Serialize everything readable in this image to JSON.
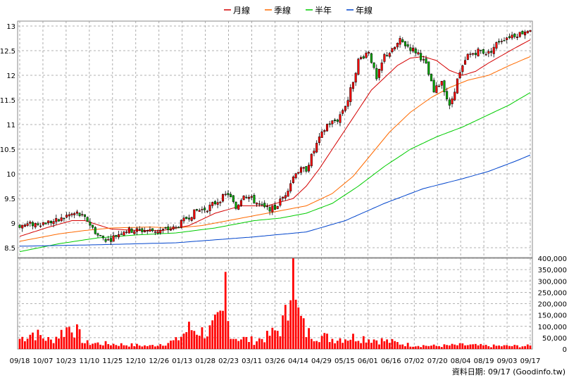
{
  "chart_data": [
    {
      "type": "candlestick",
      "legend": [
        {
          "name": "月線",
          "color": "#d40000"
        },
        {
          "name": "季線",
          "color": "#ff6a00"
        },
        {
          "name": "半年",
          "color": "#00cc00"
        },
        {
          "name": "年線",
          "color": "#0044cc"
        }
      ],
      "legend_position": "top-center",
      "grid": true,
      "ylim": [
        8.3,
        13.1
      ],
      "y_ticks": [
        "13",
        "12.5",
        "12",
        "11.5",
        "11",
        "10.5",
        "10",
        "9.5",
        "9",
        "8.5"
      ],
      "x_ticks": [
        "09/18",
        "10/07",
        "10/23",
        "11/10",
        "11/25",
        "12/10",
        "12/26",
        "01/13",
        "01/28",
        "02/23",
        "03/11",
        "03/26",
        "04/14",
        "04/29",
        "05/15",
        "06/01",
        "06/16",
        "07/02",
        "07/20",
        "08/04",
        "08/19",
        "09/03",
        "09/17"
      ],
      "price_keypoints": [
        [
          0,
          8.95
        ],
        [
          8,
          9.0
        ],
        [
          15,
          9.05
        ],
        [
          18,
          9.15
        ],
        [
          22,
          9.2
        ],
        [
          26,
          9.05
        ],
        [
          30,
          8.75
        ],
        [
          34,
          8.65
        ],
        [
          40,
          8.85
        ],
        [
          48,
          8.85
        ],
        [
          54,
          8.85
        ],
        [
          60,
          8.9
        ],
        [
          64,
          9.1
        ],
        [
          68,
          9.25
        ],
        [
          72,
          9.3
        ],
        [
          76,
          9.45
        ],
        [
          80,
          9.6
        ],
        [
          83,
          9.3
        ],
        [
          86,
          9.6
        ],
        [
          90,
          9.45
        ],
        [
          94,
          9.3
        ],
        [
          98,
          9.3
        ],
        [
          102,
          9.6
        ],
        [
          106,
          10.05
        ],
        [
          110,
          10.1
        ],
        [
          114,
          10.6
        ],
        [
          118,
          11.0
        ],
        [
          122,
          11.1
        ],
        [
          126,
          11.5
        ],
        [
          130,
          12.3
        ],
        [
          134,
          12.5
        ],
        [
          137,
          11.9
        ],
        [
          140,
          12.4
        ],
        [
          143,
          12.5
        ],
        [
          146,
          12.7
        ],
        [
          150,
          12.55
        ],
        [
          153,
          12.45
        ],
        [
          156,
          12.2
        ],
        [
          159,
          11.65
        ],
        [
          162,
          11.9
        ],
        [
          165,
          11.35
        ],
        [
          168,
          11.9
        ],
        [
          172,
          12.4
        ],
        [
          176,
          12.5
        ],
        [
          180,
          12.45
        ],
        [
          184,
          12.7
        ],
        [
          188,
          12.8
        ],
        [
          192,
          12.85
        ],
        [
          196,
          12.95
        ]
      ],
      "moving_averages": {
        "月線": [
          [
            0,
            8.73
          ],
          [
            10,
            8.9
          ],
          [
            20,
            9.05
          ],
          [
            25,
            9.05
          ],
          [
            35,
            8.88
          ],
          [
            45,
            8.85
          ],
          [
            55,
            8.85
          ],
          [
            65,
            8.95
          ],
          [
            75,
            9.2
          ],
          [
            85,
            9.35
          ],
          [
            95,
            9.35
          ],
          [
            105,
            9.5
          ],
          [
            110,
            9.75
          ],
          [
            115,
            10.1
          ],
          [
            120,
            10.5
          ],
          [
            125,
            10.9
          ],
          [
            130,
            11.3
          ],
          [
            135,
            11.7
          ],
          [
            140,
            11.95
          ],
          [
            145,
            12.2
          ],
          [
            150,
            12.35
          ],
          [
            155,
            12.38
          ],
          [
            160,
            12.3
          ],
          [
            165,
            12.1
          ],
          [
            170,
            12.0
          ],
          [
            175,
            12.08
          ],
          [
            180,
            12.25
          ],
          [
            185,
            12.4
          ],
          [
            190,
            12.55
          ],
          [
            196,
            12.72
          ]
        ],
        "季線": [
          [
            0,
            8.63
          ],
          [
            15,
            8.78
          ],
          [
            25,
            8.85
          ],
          [
            35,
            8.9
          ],
          [
            50,
            8.92
          ],
          [
            60,
            8.9
          ],
          [
            70,
            8.95
          ],
          [
            85,
            9.1
          ],
          [
            100,
            9.25
          ],
          [
            110,
            9.35
          ],
          [
            120,
            9.6
          ],
          [
            128,
            9.95
          ],
          [
            135,
            10.4
          ],
          [
            142,
            10.85
          ],
          [
            150,
            11.25
          ],
          [
            158,
            11.55
          ],
          [
            165,
            11.75
          ],
          [
            172,
            11.9
          ],
          [
            180,
            12.0
          ],
          [
            188,
            12.2
          ],
          [
            196,
            12.38
          ]
        ],
        "半年": [
          [
            0,
            8.42
          ],
          [
            15,
            8.58
          ],
          [
            30,
            8.7
          ],
          [
            45,
            8.76
          ],
          [
            60,
            8.8
          ],
          [
            75,
            8.9
          ],
          [
            90,
            9.05
          ],
          [
            100,
            9.1
          ],
          [
            110,
            9.2
          ],
          [
            120,
            9.4
          ],
          [
            130,
            9.75
          ],
          [
            140,
            10.15
          ],
          [
            150,
            10.5
          ],
          [
            160,
            10.75
          ],
          [
            170,
            10.95
          ],
          [
            180,
            11.2
          ],
          [
            188,
            11.4
          ],
          [
            196,
            11.65
          ]
        ],
        "年線": [
          [
            0,
            8.53
          ],
          [
            30,
            8.56
          ],
          [
            60,
            8.6
          ],
          [
            90,
            8.72
          ],
          [
            110,
            8.82
          ],
          [
            125,
            9.05
          ],
          [
            140,
            9.4
          ],
          [
            155,
            9.7
          ],
          [
            170,
            9.9
          ],
          [
            180,
            10.05
          ],
          [
            190,
            10.25
          ],
          [
            196,
            10.38
          ]
        ]
      }
    },
    {
      "type": "bar",
      "series": [
        {
          "name": "",
          "color": "#ff0000"
        }
      ],
      "ylim": [
        0,
        400000
      ],
      "y_ticks": [
        "400,000",
        "350,000",
        "300,000",
        "250,000",
        "200,000",
        "150,000",
        "100,000",
        "50,000",
        "0"
      ],
      "volume_keypoints": [
        [
          0,
          50000
        ],
        [
          5,
          80000
        ],
        [
          12,
          40000
        ],
        [
          20,
          120000
        ],
        [
          25,
          30000
        ],
        [
          35,
          25000
        ],
        [
          50,
          15000
        ],
        [
          60,
          40000
        ],
        [
          65,
          100000
        ],
        [
          72,
          80000
        ],
        [
          78,
          150000
        ],
        [
          79,
          340000
        ],
        [
          80,
          130000
        ],
        [
          82,
          60000
        ],
        [
          90,
          40000
        ],
        [
          95,
          60000
        ],
        [
          100,
          100000
        ],
        [
          104,
          210000
        ],
        [
          105,
          410000
        ],
        [
          106,
          200000
        ],
        [
          110,
          80000
        ],
        [
          120,
          50000
        ],
        [
          130,
          60000
        ],
        [
          140,
          40000
        ],
        [
          150,
          20000
        ],
        [
          160,
          15000
        ],
        [
          170,
          20000
        ],
        [
          180,
          15000
        ],
        [
          190,
          15000
        ],
        [
          196,
          15000
        ]
      ]
    }
  ],
  "footer": {
    "label": "資料日期: 09/17 (Goodinfo.tw)"
  }
}
